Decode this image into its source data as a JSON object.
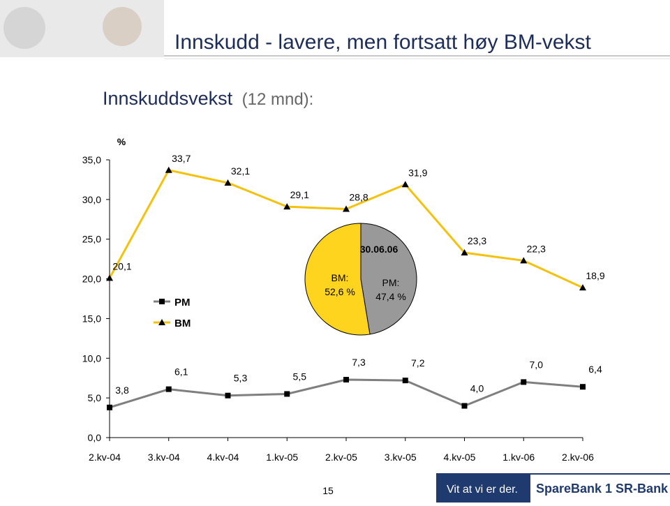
{
  "header": {
    "title": "Innskudd - lavere, men fortsatt høy BM-vekst",
    "subtitle": "Innskuddsvekst",
    "subtitle_note": "(12 mnd):"
  },
  "chart_data": [
    {
      "type": "line",
      "y_label": "%",
      "categories": [
        "2.kv-04",
        "3.kv-04",
        "4.kv-04",
        "1.kv-05",
        "2.kv-05",
        "3.kv-05",
        "4.kv-05",
        "1.kv-06",
        "2.kv-06"
      ],
      "series": [
        {
          "name": "PM",
          "color": "#7f7f7f",
          "marker": "square",
          "values": [
            3.8,
            6.1,
            5.3,
            5.5,
            7.3,
            7.2,
            4.0,
            7.0,
            6.4
          ],
          "value_labels": [
            "3,8",
            "6,1",
            "5,3",
            "5,5",
            "7,3",
            "7,2",
            "4,0",
            "7,0",
            "6,4"
          ]
        },
        {
          "name": "BM",
          "color": "#f4c20d",
          "marker": "triangle",
          "values": [
            20.1,
            33.7,
            32.1,
            29.1,
            28.8,
            31.9,
            23.3,
            22.3,
            18.9
          ],
          "value_labels": [
            "20,1",
            "33,7",
            "32,1",
            "29,1",
            "28,8",
            "31,9",
            "23,3",
            "22,3",
            "18,9"
          ]
        }
      ],
      "ylim": [
        0,
        35
      ],
      "yticks": [
        {
          "value": 0,
          "label": "0,0"
        },
        {
          "value": 5,
          "label": "5,0"
        },
        {
          "value": 10,
          "label": "10,0"
        },
        {
          "value": 15,
          "label": "15,0"
        },
        {
          "value": 20,
          "label": "20,0"
        },
        {
          "value": 25,
          "label": "25,0"
        },
        {
          "value": 30,
          "label": "30,0"
        },
        {
          "value": 35,
          "label": "35,0"
        }
      ]
    },
    {
      "type": "pie",
      "title": "30.06.06",
      "categories": [
        "BM:",
        "PM:"
      ],
      "values": [
        52.6,
        47.4
      ],
      "value_labels": [
        "52,6 %",
        "47,4 %"
      ],
      "colors": [
        "#ffd41f",
        "#999999"
      ]
    }
  ],
  "footer": {
    "page": "15",
    "slogan": "Vit at vi er der.",
    "brand": "SpareBank 1 SR-Bank"
  }
}
